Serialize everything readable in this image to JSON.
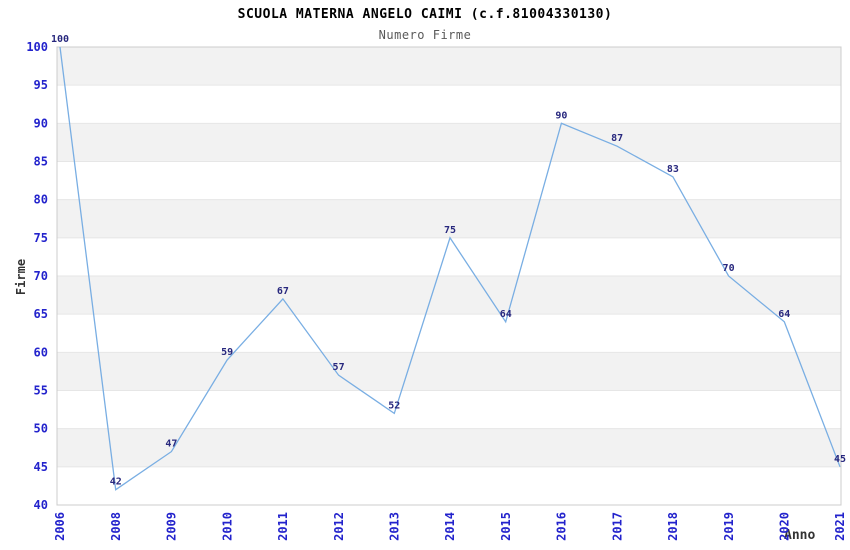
{
  "chart_data": {
    "type": "line",
    "title": "SCUOLA MATERNA ANGELO CAIMI (c.f.81004330130)",
    "subtitle": "Numero Firme",
    "xlabel": "Anno",
    "ylabel": "Firme",
    "categories": [
      "2006",
      "2008",
      "2009",
      "2010",
      "2011",
      "2012",
      "2013",
      "2014",
      "2015",
      "2016",
      "2017",
      "2018",
      "2019",
      "2020",
      "2021"
    ],
    "values": [
      100,
      42,
      47,
      59,
      67,
      57,
      52,
      75,
      64,
      90,
      87,
      83,
      70,
      64,
      45
    ],
    "ylim": [
      40,
      100
    ],
    "ytick_step": 5,
    "grid": "alternating-horizontal-bands",
    "legend": "none",
    "data_labels_shown": true,
    "x_tick_rotation_deg": -90,
    "colors": {
      "line": "#79aee3",
      "band_gray": "#f2f2f2",
      "plot_border": "#cccccc",
      "axis_tick_text": "#2323cc",
      "data_label_text": "#28287e",
      "title_text": "#000000",
      "subtitle_text": "#595959",
      "axis_title_text": "#333333",
      "background": "#ffffff"
    }
  }
}
